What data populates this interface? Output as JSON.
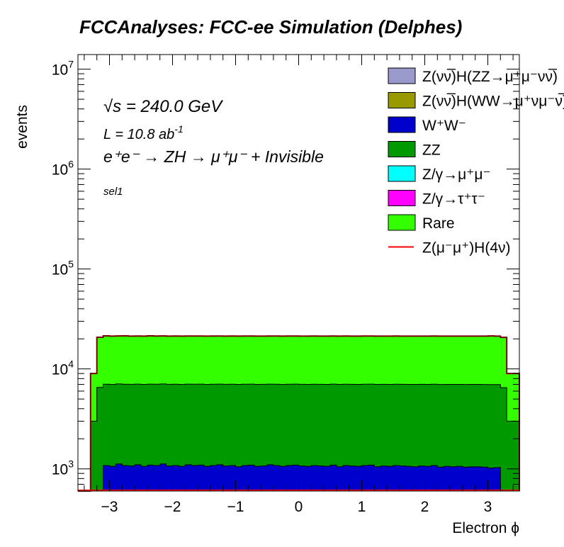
{
  "chart_data": {
    "type": "histogram",
    "title": "FCCAnalyses: FCC-ee Simulation (Delphes)",
    "xlabel": "Electron ϕ",
    "ylabel": "events",
    "xlim": [
      -3.5,
      3.5
    ],
    "ylim": [
      600,
      14000000
    ],
    "log_y": true,
    "x_ticks": [
      -3,
      -2,
      -1,
      0,
      1,
      2,
      3
    ],
    "x_tick_labels": [
      "−3",
      "−2",
      "−1",
      "0",
      "1",
      "2",
      "3"
    ],
    "y_ticks": [
      1000,
      10000,
      100000,
      1000000,
      10000000
    ],
    "y_tick_labels": [
      {
        "base": "10",
        "exp": "3"
      },
      {
        "base": "10",
        "exp": "4"
      },
      {
        "base": "10",
        "exp": "5"
      },
      {
        "base": "10",
        "exp": "6"
      },
      {
        "base": "10",
        "exp": "7"
      }
    ],
    "annotations": {
      "sqrt_s_symbol": "√s",
      "sqrt_s_rest": " = 240.0 GeV",
      "lumi_main": "L = 10.8 ab",
      "lumi_sup": "-1",
      "process": "e⁺e⁻ → ZH → μ⁺μ⁻ + Invisible",
      "selection": "sel1"
    },
    "legend": {
      "placement": "top-right",
      "entries": [
        {
          "label": "Z(νν̅)H(ZZ→μ⁺μ⁻νν̅)",
          "color": "#9999cc",
          "style": "fill"
        },
        {
          "label": "Z(νν̅)H(WW→μ⁺νμ⁻ν̅)",
          "color": "#999900",
          "style": "fill"
        },
        {
          "label": "W⁺W⁻",
          "color": "#0000cc",
          "style": "fill"
        },
        {
          "label": "ZZ",
          "color": "#009900",
          "style": "fill"
        },
        {
          "label": "Z/γ→μ⁺μ⁻",
          "color": "#00ffff",
          "style": "fill"
        },
        {
          "label": "Z/γ→τ⁺τ⁻",
          "color": "#ff00ff",
          "style": "fill"
        },
        {
          "label": "Rare",
          "color": "#33ff00",
          "style": "fill"
        },
        {
          "label": "Z(μ⁻μ⁺)H(4ν)",
          "color": "#ff0000",
          "style": "line"
        }
      ]
    },
    "stack_colors": {
      "WW": "#0000cc",
      "ZZ": "#009900",
      "Rare": "#33ff00",
      "signal_line": "#ff0000",
      "outline": "#7a0000"
    },
    "bins": {
      "edges": [
        -3.5,
        -3.3,
        -3.2,
        -3.1,
        -3.0,
        -2.9,
        -2.8,
        -2.7,
        -2.6,
        -2.5,
        -2.4,
        -2.3,
        -2.2,
        -2.1,
        -2.0,
        -1.9,
        -1.8,
        -1.7,
        -1.6,
        -1.5,
        -1.4,
        -1.3,
        -1.2,
        -1.1,
        -1.0,
        -0.9,
        -0.8,
        -0.7,
        -0.6,
        -0.5,
        -0.4,
        -0.3,
        -0.2,
        -0.1,
        0.0,
        0.1,
        0.2,
        0.3,
        0.4,
        0.5,
        0.6,
        0.7,
        0.8,
        0.9,
        1.0,
        1.1,
        1.2,
        1.3,
        1.4,
        1.5,
        1.6,
        1.7,
        1.8,
        1.9,
        2.0,
        2.1,
        2.2,
        2.3,
        2.4,
        2.5,
        2.6,
        2.7,
        2.8,
        2.9,
        3.0,
        3.1,
        3.2,
        3.3,
        3.5
      ],
      "WW": [
        0,
        500,
        580,
        1080,
        1060,
        1120,
        1080,
        1070,
        1100,
        1060,
        1090,
        1080,
        1120,
        1070,
        1080,
        1060,
        1100,
        1080,
        1090,
        1060,
        1080,
        1100,
        1070,
        1080,
        1050,
        1080,
        1090,
        1060,
        1070,
        1100,
        1080,
        1060,
        1080,
        1090,
        1070,
        1060,
        1080,
        1070,
        1060,
        1090,
        1050,
        1080,
        1070,
        1060,
        1080,
        1090,
        1050,
        1070,
        1060,
        1080,
        1070,
        1060,
        1050,
        1070,
        1060,
        1080,
        1040,
        1060,
        1050,
        1060,
        1040,
        1050,
        1050,
        1040,
        1020,
        1030,
        550,
        500,
        0
      ],
      "ZZ": [
        0,
        2500,
        5950,
        5950,
        5950,
        5950,
        5950,
        5950,
        5950,
        5950,
        5950,
        5950,
        5950,
        5950,
        5950,
        5950,
        5950,
        5950,
        5950,
        5950,
        5950,
        5950,
        5950,
        5950,
        5950,
        5950,
        5950,
        5950,
        5950,
        5950,
        5950,
        5950,
        5950,
        5950,
        5950,
        5950,
        5950,
        5950,
        5950,
        5950,
        5950,
        5950,
        5950,
        5950,
        5950,
        5950,
        5950,
        5950,
        5950,
        5950,
        5950,
        5950,
        5950,
        5950,
        5950,
        5950,
        5950,
        5950,
        5950,
        5950,
        5950,
        5950,
        5950,
        5950,
        5950,
        5950,
        5950,
        2500,
        0
      ],
      "Rare": [
        0,
        6000,
        14200,
        14400,
        14300,
        14300,
        14400,
        14300,
        14300,
        14300,
        14400,
        14300,
        14300,
        14300,
        14300,
        14300,
        14300,
        14300,
        14300,
        14300,
        14300,
        14300,
        14300,
        14300,
        14300,
        14300,
        14300,
        14300,
        14300,
        14300,
        14300,
        14300,
        14300,
        14300,
        14300,
        14300,
        14300,
        14300,
        14300,
        14300,
        14300,
        14300,
        14300,
        14300,
        14300,
        14300,
        14300,
        14300,
        14300,
        14300,
        14300,
        14300,
        14300,
        14300,
        14300,
        14300,
        14300,
        14300,
        14300,
        14300,
        14300,
        14300,
        14300,
        14300,
        14400,
        14300,
        14200,
        6000,
        0
      ]
    }
  }
}
